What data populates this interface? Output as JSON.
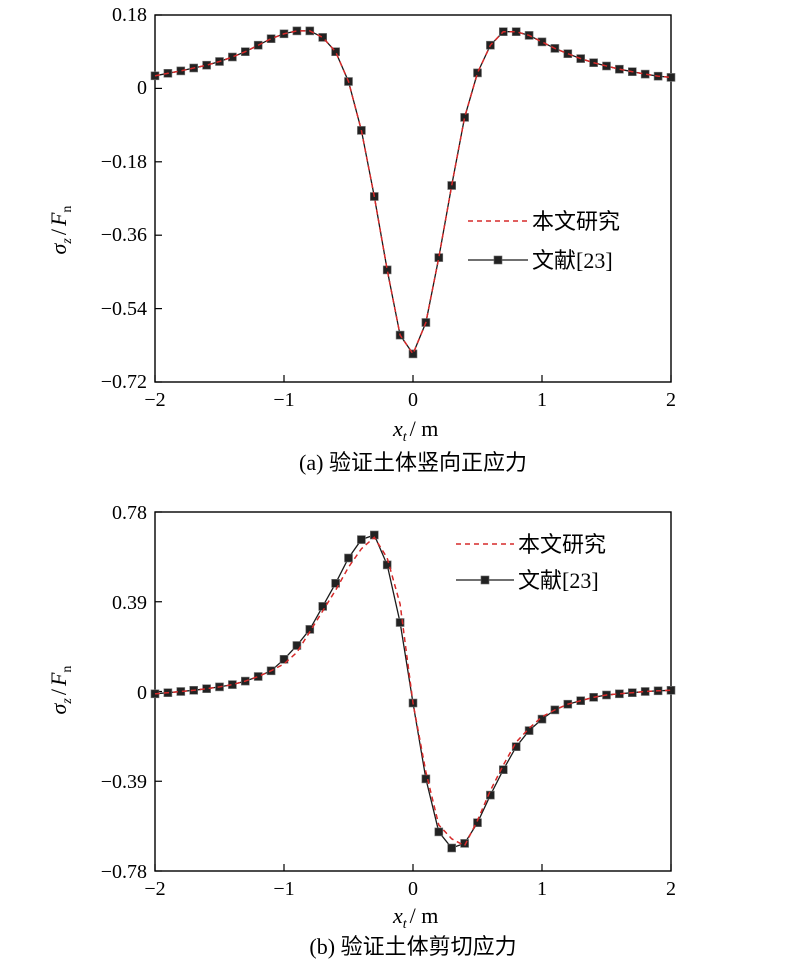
{
  "chart_data": [
    {
      "type": "line",
      "caption": "(a) 验证土体竖向正应力",
      "xlabel_var": "x",
      "xlabel_sub": "t",
      "xlabel_unit": "/ m",
      "ylabel_num": "σ",
      "ylabel_num_sub": "z",
      "ylabel_den": "F",
      "ylabel_den_sub": "n",
      "xlim": [
        -2,
        2
      ],
      "ylim": [
        -0.72,
        0.18
      ],
      "xticks": [
        -2,
        -1,
        0,
        1,
        2
      ],
      "xtick_labels": [
        "−2",
        "−1",
        "0",
        "1",
        "2"
      ],
      "yticks": [
        0.18,
        0,
        -0.18,
        -0.36,
        -0.54,
        -0.72
      ],
      "ytick_labels": [
        "0.18",
        "0",
        "−0.18",
        "−0.36",
        "−0.54",
        "−0.72"
      ],
      "legend_position": "right",
      "series": [
        {
          "name": "本文研究",
          "style": "dashed",
          "color": "#d62a2a",
          "x": [
            -2.0,
            -1.9,
            -1.8,
            -1.7,
            -1.6,
            -1.5,
            -1.4,
            -1.3,
            -1.2,
            -1.1,
            -1.0,
            -0.9,
            -0.8,
            -0.7,
            -0.6,
            -0.5,
            -0.4,
            -0.3,
            -0.2,
            -0.1,
            0.0,
            0.1,
            0.2,
            0.3,
            0.4,
            0.5,
            0.6,
            0.7,
            0.8,
            0.9,
            1.0,
            1.1,
            1.2,
            1.3,
            1.4,
            1.5,
            1.6,
            1.7,
            1.8,
            1.9,
            2.0
          ],
          "y": [
            0.031,
            0.037,
            0.043,
            0.05,
            0.057,
            0.066,
            0.077,
            0.09,
            0.106,
            0.122,
            0.134,
            0.141,
            0.141,
            0.125,
            0.09,
            0.017,
            -0.103,
            -0.265,
            -0.445,
            -0.605,
            -0.651,
            -0.574,
            -0.415,
            -0.238,
            -0.071,
            0.038,
            0.106,
            0.139,
            0.139,
            0.13,
            0.114,
            0.098,
            0.085,
            0.073,
            0.063,
            0.055,
            0.047,
            0.041,
            0.035,
            0.03,
            0.027
          ]
        },
        {
          "name": "文献[23]",
          "style": "solid-square",
          "color": "#1a1a1a",
          "x": [
            -2.0,
            -1.9,
            -1.8,
            -1.7,
            -1.6,
            -1.5,
            -1.4,
            -1.3,
            -1.2,
            -1.1,
            -1.0,
            -0.9,
            -0.8,
            -0.7,
            -0.6,
            -0.5,
            -0.4,
            -0.3,
            -0.2,
            -0.1,
            0.0,
            0.1,
            0.2,
            0.3,
            0.4,
            0.5,
            0.6,
            0.7,
            0.8,
            0.9,
            1.0,
            1.1,
            1.2,
            1.3,
            1.4,
            1.5,
            1.6,
            1.7,
            1.8,
            1.9,
            2.0
          ],
          "y": [
            0.031,
            0.037,
            0.043,
            0.05,
            0.057,
            0.066,
            0.077,
            0.09,
            0.106,
            0.122,
            0.134,
            0.141,
            0.141,
            0.125,
            0.09,
            0.017,
            -0.103,
            -0.265,
            -0.445,
            -0.605,
            -0.651,
            -0.574,
            -0.415,
            -0.238,
            -0.071,
            0.038,
            0.106,
            0.139,
            0.139,
            0.13,
            0.114,
            0.098,
            0.085,
            0.073,
            0.063,
            0.055,
            0.047,
            0.041,
            0.035,
            0.03,
            0.027
          ]
        }
      ]
    },
    {
      "type": "line",
      "caption": "(b) 验证土体剪切应力",
      "xlabel_var": "x",
      "xlabel_sub": "t",
      "xlabel_unit": "/ m",
      "ylabel_num": "σ",
      "ylabel_num_sub": "z",
      "ylabel_den": "F",
      "ylabel_den_sub": "n",
      "xlim": [
        -2,
        2
      ],
      "ylim": [
        -0.78,
        0.78
      ],
      "xticks": [
        -2,
        -1,
        0,
        1,
        2
      ],
      "xtick_labels": [
        "−2",
        "−1",
        "0",
        "1",
        "2"
      ],
      "yticks": [
        0.78,
        0.39,
        0,
        -0.39,
        -0.78
      ],
      "ytick_labels": [
        "0.78",
        "0.39",
        "0",
        "−0.39",
        "−0.78"
      ],
      "legend_position": "top-right",
      "series": [
        {
          "name": "本文研究",
          "style": "dashed",
          "color": "#d62a2a",
          "x": [
            -2.0,
            -1.9,
            -1.8,
            -1.7,
            -1.6,
            -1.5,
            -1.4,
            -1.3,
            -1.2,
            -1.1,
            -1.0,
            -0.9,
            -0.8,
            -0.7,
            -0.6,
            -0.5,
            -0.4,
            -0.3,
            -0.2,
            -0.1,
            0.0,
            0.1,
            0.2,
            0.3,
            0.4,
            0.5,
            0.6,
            0.7,
            0.8,
            0.9,
            1.0,
            1.1,
            1.2,
            1.3,
            1.4,
            1.5,
            1.6,
            1.7,
            1.8,
            1.9,
            2.0
          ],
          "y": [
            -0.01,
            -0.005,
            0.0,
            0.005,
            0.012,
            0.02,
            0.03,
            0.045,
            0.065,
            0.09,
            0.12,
            0.17,
            0.26,
            0.35,
            0.44,
            0.54,
            0.62,
            0.67,
            0.58,
            0.38,
            -0.05,
            -0.35,
            -0.58,
            -0.64,
            -0.67,
            -0.56,
            -0.43,
            -0.32,
            -0.22,
            -0.16,
            -0.11,
            -0.08,
            -0.055,
            -0.04,
            -0.025,
            -0.015,
            -0.01,
            -0.005,
            0.0,
            0.003,
            0.005
          ]
        },
        {
          "name": "文献[23]",
          "style": "solid-square",
          "color": "#1a1a1a",
          "x": [
            -2.0,
            -1.9,
            -1.8,
            -1.7,
            -1.6,
            -1.5,
            -1.4,
            -1.3,
            -1.2,
            -1.1,
            -1.0,
            -0.9,
            -0.8,
            -0.7,
            -0.6,
            -0.5,
            -0.4,
            -0.3,
            -0.2,
            -0.1,
            0.0,
            0.1,
            0.2,
            0.3,
            0.4,
            0.5,
            0.6,
            0.7,
            0.8,
            0.9,
            1.0,
            1.1,
            1.2,
            1.3,
            1.4,
            1.5,
            1.6,
            1.7,
            1.8,
            1.9,
            2.0
          ],
          "y": [
            -0.01,
            -0.005,
            0.0,
            0.005,
            0.012,
            0.02,
            0.03,
            0.045,
            0.065,
            0.09,
            0.14,
            0.2,
            0.27,
            0.37,
            0.47,
            0.58,
            0.66,
            0.68,
            0.55,
            0.3,
            -0.05,
            -0.38,
            -0.61,
            -0.68,
            -0.66,
            -0.57,
            -0.45,
            -0.34,
            -0.24,
            -0.17,
            -0.12,
            -0.08,
            -0.055,
            -0.04,
            -0.025,
            -0.015,
            -0.01,
            -0.005,
            0.0,
            0.003,
            0.005
          ]
        }
      ]
    }
  ]
}
